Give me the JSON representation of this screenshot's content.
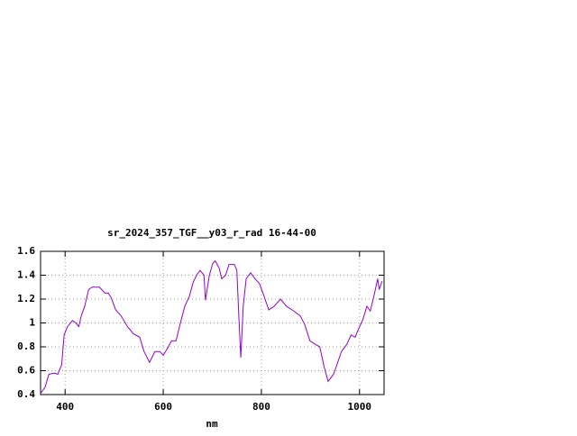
{
  "chart_data": {
    "type": "line",
    "title": "sr_2024_357_TGF__y03_r_rad 16-44-00",
    "xlabel": "nm",
    "x": [
      350,
      359,
      367,
      378,
      385,
      393,
      398,
      405,
      415,
      422,
      428,
      433,
      440,
      448,
      455,
      470,
      481,
      488,
      494,
      503,
      514,
      527,
      539,
      552,
      561,
      572,
      583,
      593,
      600,
      609,
      617,
      626,
      635,
      644,
      653,
      661,
      668,
      675,
      683,
      686,
      694,
      701,
      706,
      714,
      719,
      727,
      734,
      745,
      750,
      754,
      758,
      763,
      769,
      778,
      787,
      796,
      805,
      815,
      826,
      839,
      851,
      866,
      879,
      888,
      899,
      910,
      919,
      928,
      936,
      947,
      954,
      963,
      974,
      983,
      991,
      998,
      1007,
      1015,
      1022,
      1029,
      1037,
      1040,
      1046
    ],
    "series": [
      {
        "color": "#9400d3",
        "values": [
          0.41,
          0.46,
          0.57,
          0.58,
          0.57,
          0.65,
          0.9,
          0.97,
          1.02,
          1.0,
          0.97,
          1.06,
          1.14,
          1.28,
          1.3,
          1.3,
          1.25,
          1.25,
          1.21,
          1.11,
          1.06,
          0.97,
          0.91,
          0.88,
          0.76,
          0.67,
          0.76,
          0.76,
          0.73,
          0.79,
          0.85,
          0.85,
          1.0,
          1.14,
          1.22,
          1.34,
          1.4,
          1.44,
          1.4,
          1.19,
          1.4,
          1.5,
          1.52,
          1.46,
          1.37,
          1.4,
          1.49,
          1.49,
          1.44,
          1.06,
          0.71,
          1.14,
          1.37,
          1.42,
          1.37,
          1.33,
          1.23,
          1.11,
          1.14,
          1.2,
          1.14,
          1.1,
          1.06,
          0.99,
          0.85,
          0.82,
          0.8,
          0.63,
          0.51,
          0.57,
          0.65,
          0.76,
          0.82,
          0.9,
          0.88,
          0.95,
          1.03,
          1.14,
          1.1,
          1.22,
          1.37,
          1.28,
          1.35
        ]
      }
    ],
    "xlim": [
      350,
      1050
    ],
    "xticks": [
      400,
      600,
      800,
      1000
    ],
    "ylim": [
      0.4,
      1.6
    ],
    "yticks": [
      0.4,
      0.6,
      0.8,
      1,
      1.2,
      1.4,
      1.6
    ],
    "grid": true
  }
}
